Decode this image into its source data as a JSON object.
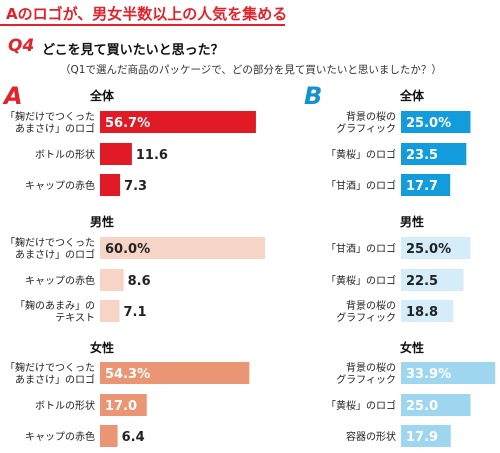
{
  "headline": "Aのロゴが、男女半数以上の人気を集める",
  "question": {
    "tag": "Q4",
    "title": "どこを見て買いたいと思った？",
    "subtitle": "（Q1で選んだ商品のパッケージで、どの部分を見て買いたいと思いましたか？）"
  },
  "colors": {
    "accent": "#e3222b",
    "a_all": "#e01b25",
    "a_male": "#f6d5c7",
    "a_female": "#ea9675",
    "b_all": "#129cdc",
    "b_male": "#d4edf8",
    "b_female": "#9fd6ef",
    "letter_a": "#e3222b",
    "letter_b": "#1590d0"
  },
  "chart_data": [
    {
      "type": "bar",
      "panel": "A",
      "groups": [
        {
          "title": "全体",
          "categories": [
            "「麹だけでつくった\nあまさけ」のロゴ",
            "ボトルの形状",
            "キャップの赤色"
          ],
          "values": [
            56.7,
            11.6,
            7.3
          ],
          "labels": [
            "56.7%",
            "11.6",
            "7.3"
          ]
        },
        {
          "title": "男性",
          "categories": [
            "「麹だけでつくった\nあまさけ」のロゴ",
            "キャップの赤色",
            "「麹のあまみ」の\nテキスト"
          ],
          "values": [
            60.0,
            8.6,
            7.1
          ],
          "labels": [
            "60.0%",
            "8.6",
            "7.1"
          ]
        },
        {
          "title": "女性",
          "categories": [
            "「麹だけでつくった\nあまさけ」のロゴ",
            "ボトルの形状",
            "キャップの赤色"
          ],
          "values": [
            54.3,
            17.0,
            6.4
          ],
          "labels": [
            "54.3%",
            "17.0",
            "6.4"
          ]
        }
      ]
    },
    {
      "type": "bar",
      "panel": "B",
      "groups": [
        {
          "title": "全体",
          "categories": [
            "背景の桜の\nグラフィック",
            "「黄桜」のロゴ",
            "「甘酒」のロゴ"
          ],
          "values": [
            25.0,
            23.5,
            17.7
          ],
          "labels": [
            "25.0%",
            "23.5",
            "17.7"
          ]
        },
        {
          "title": "男性",
          "categories": [
            "「甘酒」のロゴ",
            "「黄桜」のロゴ",
            "背景の桜の\nグラフィック"
          ],
          "values": [
            25.0,
            22.5,
            18.8
          ],
          "labels": [
            "25.0%",
            "22.5",
            "18.8"
          ]
        },
        {
          "title": "女性",
          "categories": [
            "背景の桜の\nグラフィック",
            "「黄桜」のロゴ",
            "容器の形状"
          ],
          "values": [
            33.9,
            25.0,
            17.9
          ],
          "labels": [
            "33.9%",
            "25.0",
            "17.9"
          ]
        }
      ]
    }
  ]
}
